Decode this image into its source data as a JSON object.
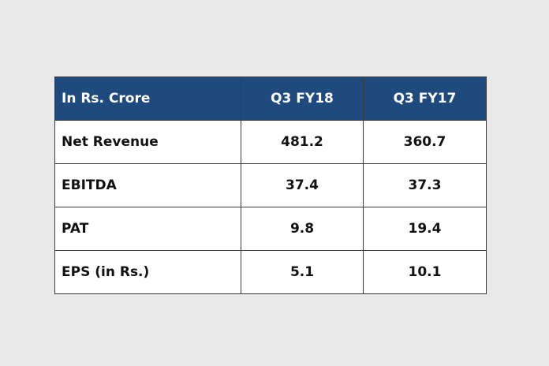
{
  "table": {
    "headers": [
      "In Rs. Crore",
      "Q3 FY18",
      "Q3 FY17"
    ],
    "rows": [
      [
        "Net Revenue",
        "481.2",
        "360.7"
      ],
      [
        "EBITDA",
        "37.4",
        "37.3"
      ],
      [
        "PAT",
        "9.8",
        "19.4"
      ],
      [
        "EPS (in Rs.)",
        "5.1",
        "10.1"
      ]
    ],
    "header_color": "#1f4a7e",
    "background_color": "#e9e9e9"
  }
}
